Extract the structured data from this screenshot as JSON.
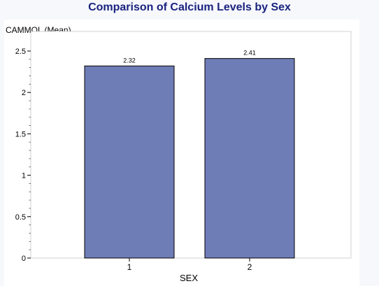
{
  "chart_data": {
    "type": "bar",
    "title": "Comparison of Calcium Levels by Sex",
    "xlabel": "SEX",
    "ylabel": "CAMMOL (Mean)",
    "categories": [
      "1",
      "2"
    ],
    "values": [
      2.32,
      2.41
    ],
    "data_labels": [
      "2.32",
      "2.41"
    ],
    "ylim": [
      0,
      2.5
    ],
    "yticks": [
      0,
      0.5,
      1,
      1.5,
      2,
      2.5
    ],
    "ytick_labels": [
      "0",
      "0.5",
      "1",
      "1.5",
      "2",
      "2.5"
    ],
    "grid": false,
    "bar_color": "#6f7db7",
    "bar_edge_color": "#000000"
  }
}
